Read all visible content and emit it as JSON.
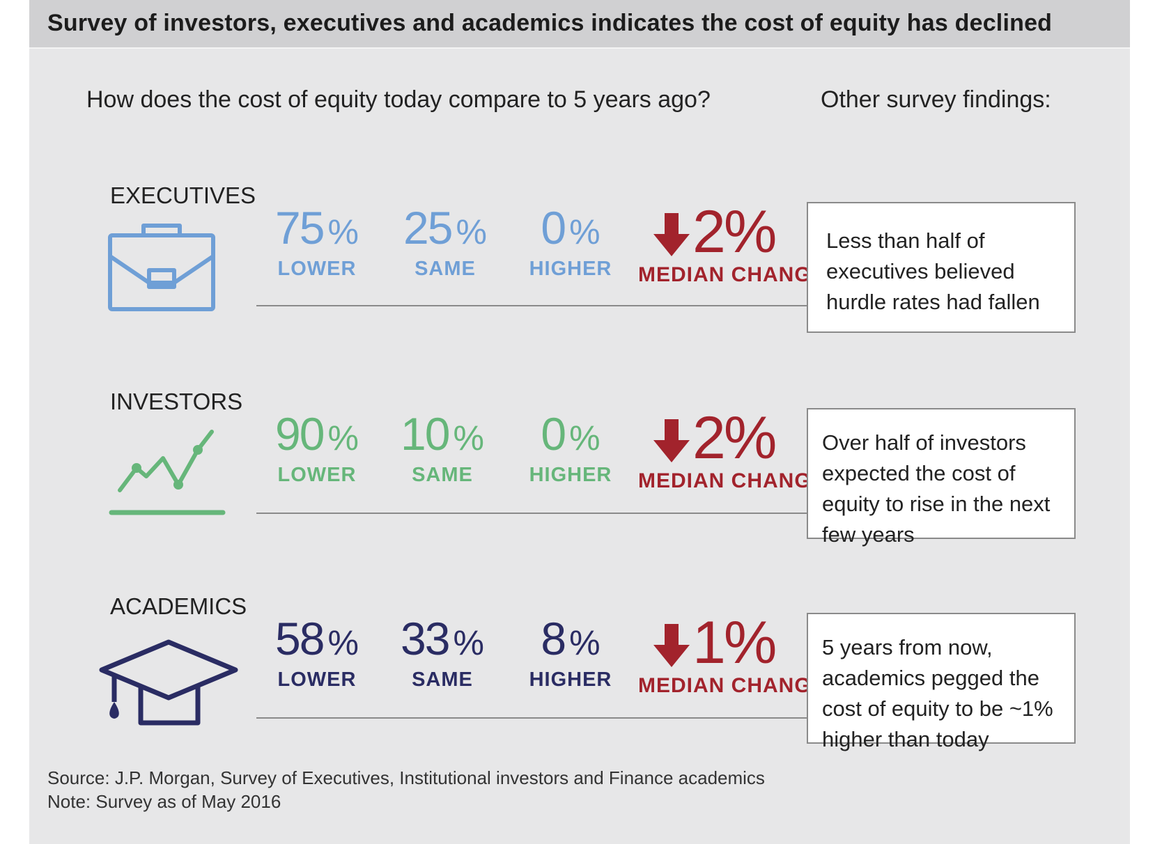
{
  "title": "Survey of investors, executives and academics indicates the cost of equity has declined",
  "question": "How does the cost of equity today compare to 5 years ago?",
  "findings_heading": "Other survey findings:",
  "colors": {
    "executives": "#6f9fd6",
    "investors": "#66b67a",
    "academics": "#2a2c63",
    "median": "#a2232c"
  },
  "groups": [
    {
      "name": "EXECUTIVES",
      "icon": "briefcase-icon",
      "stats": [
        {
          "value": "75",
          "pct": "%",
          "label": "LOWER"
        },
        {
          "value": "25",
          "pct": "%",
          "label": "SAME"
        },
        {
          "value": "0",
          "pct": "%",
          "label": "HIGHER"
        }
      ],
      "median_value": "2%",
      "median_label": "MEDIAN CHANGE",
      "finding": "Less than half of executives believed hurdle rates had fallen"
    },
    {
      "name": "INVESTORS",
      "icon": "line-chart-icon",
      "stats": [
        {
          "value": "90",
          "pct": "%",
          "label": "LOWER"
        },
        {
          "value": "10",
          "pct": "%",
          "label": "SAME"
        },
        {
          "value": "0",
          "pct": "%",
          "label": "HIGHER"
        }
      ],
      "median_value": "2%",
      "median_label": "MEDIAN CHANGE",
      "finding": "Over half of investors expected the cost of equity to rise in the next few years"
    },
    {
      "name": "ACADEMICS",
      "icon": "graduation-cap-icon",
      "stats": [
        {
          "value": "58",
          "pct": "%",
          "label": "LOWER"
        },
        {
          "value": "33",
          "pct": "%",
          "label": "SAME"
        },
        {
          "value": "8",
          "pct": "%",
          "label": "HIGHER"
        }
      ],
      "median_value": "1%",
      "median_label": "MEDIAN CHANGE",
      "finding": "5 years from now, academics pegged the cost of equity to be ~1% higher than today"
    }
  ],
  "source": "Source: J.P. Morgan, Survey of Executives, Institutional investors and Finance academics",
  "note": "Note: Survey as of May 2016",
  "chart_data": {
    "type": "table",
    "title": "Survey of investors, executives and academics indicates the cost of equity has declined",
    "question": "How does the cost of equity today compare to 5 years ago?",
    "columns": [
      "LOWER",
      "SAME",
      "HIGHER",
      "MEDIAN CHANGE"
    ],
    "rows": [
      {
        "group": "EXECUTIVES",
        "lower": 75,
        "same": 25,
        "higher": 0,
        "median_change": -2
      },
      {
        "group": "INVESTORS",
        "lower": 90,
        "same": 10,
        "higher": 0,
        "median_change": -2
      },
      {
        "group": "ACADEMICS",
        "lower": 58,
        "same": 33,
        "higher": 8,
        "median_change": -1
      }
    ]
  }
}
